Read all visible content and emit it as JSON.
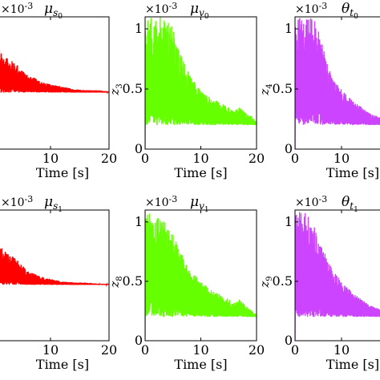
{
  "chart_data": [
    {
      "type": "line",
      "exponent": "×10-3",
      "title": {
        "base": "μ",
        "sub": "s",
        "subsub": "0"
      },
      "ylabel": null,
      "xlabel": "Time [s]",
      "xlim": [
        0,
        20
      ],
      "ylim": [
        0,
        1.1
      ],
      "xticks": [
        "10",
        "20"
      ],
      "xtick_values": [
        10,
        20
      ],
      "yticks": [],
      "color": "#ff0000",
      "series": [
        {
          "x_start": 0,
          "x_end": 20,
          "envelope": [
            [
              0,
              1.0
            ],
            [
              1,
              0.85
            ],
            [
              2,
              0.78
            ],
            [
              3,
              0.75
            ],
            [
              4,
              0.72
            ],
            [
              5,
              0.66
            ],
            [
              6,
              0.62
            ],
            [
              7,
              0.6
            ],
            [
              8,
              0.57
            ],
            [
              9,
              0.55
            ],
            [
              10,
              0.54
            ],
            [
              12,
              0.52
            ],
            [
              14,
              0.5
            ],
            [
              16,
              0.49
            ],
            [
              18,
              0.49
            ],
            [
              20,
              0.48
            ]
          ],
          "baseline": 0.47
        }
      ]
    },
    {
      "type": "line",
      "exponent": "×10-3",
      "title": {
        "base": "μ",
        "sub": "v",
        "subsub": "0"
      },
      "ylabel": {
        "base": "z",
        "sub": "3"
      },
      "xlabel": "Time [s]",
      "xlim": [
        0,
        20
      ],
      "ylim": [
        0,
        1.1
      ],
      "xticks": [
        "0",
        "10",
        "20"
      ],
      "xtick_values": [
        0,
        10,
        20
      ],
      "yticks": [
        "0",
        "0.5",
        "1"
      ],
      "ytick_values": [
        0,
        0.5,
        1
      ],
      "color": "#66ff00",
      "series": [
        {
          "x_start": 0,
          "x_end": 20,
          "envelope": [
            [
              0,
              1.1
            ],
            [
              1,
              1.1
            ],
            [
              2,
              1.1
            ],
            [
              3,
              1.1
            ],
            [
              4,
              1.1
            ],
            [
              5,
              1.0
            ],
            [
              6,
              0.85
            ],
            [
              7,
              0.72
            ],
            [
              8,
              0.62
            ],
            [
              9,
              0.55
            ],
            [
              10,
              0.5
            ],
            [
              12,
              0.42
            ],
            [
              14,
              0.38
            ],
            [
              16,
              0.32
            ],
            [
              17,
              0.35
            ],
            [
              18,
              0.3
            ],
            [
              19,
              0.28
            ],
            [
              20,
              0.22
            ]
          ],
          "baseline": 0.2
        }
      ]
    },
    {
      "type": "line",
      "exponent": "×10-3",
      "title": {
        "base": "θ",
        "sub": "t",
        "subsub": "0"
      },
      "ylabel": {
        "base": "z",
        "sub": "4"
      },
      "xlabel": "Time [s]",
      "xlim": [
        0,
        20
      ],
      "ylim": [
        0,
        1.1
      ],
      "xticks": [
        "0",
        "10",
        "20"
      ],
      "xtick_values": [
        0,
        10,
        20
      ],
      "yticks": [
        "0",
        "0.5",
        "1"
      ],
      "ytick_values": [
        0,
        0.5,
        1
      ],
      "color": "#cc44ff",
      "series": [
        {
          "x_start": 0,
          "x_end": 20,
          "envelope": [
            [
              0,
              1.1
            ],
            [
              1,
              1.1
            ],
            [
              2,
              1.1
            ],
            [
              3,
              1.1
            ],
            [
              4,
              1.1
            ],
            [
              5,
              1.0
            ],
            [
              6,
              0.85
            ],
            [
              7,
              0.7
            ],
            [
              8,
              0.6
            ],
            [
              9,
              0.55
            ],
            [
              10,
              0.5
            ],
            [
              12,
              0.42
            ],
            [
              14,
              0.36
            ],
            [
              16,
              0.3
            ],
            [
              18,
              0.27
            ],
            [
              20,
              0.25
            ]
          ],
          "baseline": 0.2
        }
      ]
    },
    {
      "type": "line",
      "exponent": "×10-3",
      "title": {
        "base": "μ",
        "sub": "s",
        "subsub": "1"
      },
      "ylabel": null,
      "xlabel": "Time [s]",
      "xlim": [
        0,
        20
      ],
      "ylim": [
        0,
        1.1
      ],
      "xticks": [
        "10",
        "20"
      ],
      "xtick_values": [
        10,
        20
      ],
      "yticks": [],
      "color": "#ff0000",
      "series": [
        {
          "x_start": 0,
          "x_end": 20,
          "envelope": [
            [
              0,
              0.92
            ],
            [
              1,
              0.82
            ],
            [
              2,
              0.76
            ],
            [
              3,
              0.72
            ],
            [
              4,
              0.7
            ],
            [
              5,
              0.64
            ],
            [
              6,
              0.6
            ],
            [
              7,
              0.57
            ],
            [
              8,
              0.55
            ],
            [
              9,
              0.53
            ],
            [
              10,
              0.52
            ],
            [
              12,
              0.5
            ],
            [
              14,
              0.49
            ],
            [
              16,
              0.49
            ],
            [
              18,
              0.48
            ],
            [
              20,
              0.48
            ]
          ],
          "baseline": 0.47
        }
      ]
    },
    {
      "type": "line",
      "exponent": "×10-3",
      "title": {
        "base": "μ",
        "sub": "v",
        "subsub": "1"
      },
      "ylabel": {
        "base": "z",
        "sub": "8"
      },
      "xlabel": "Time [s]",
      "xlim": [
        0,
        20
      ],
      "ylim": [
        0,
        1.1
      ],
      "xticks": [
        "0",
        "10",
        "20"
      ],
      "xtick_values": [
        0,
        10,
        20
      ],
      "yticks": [
        "0",
        "0.5",
        "1"
      ],
      "ytick_values": [
        0,
        0.5,
        1
      ],
      "color": "#66ff00",
      "series": [
        {
          "x_start": 0,
          "x_end": 20,
          "envelope": [
            [
              0,
              1.1
            ],
            [
              1,
              1.1
            ],
            [
              2,
              1.1
            ],
            [
              3,
              1.05
            ],
            [
              4,
              0.95
            ],
            [
              5,
              0.9
            ],
            [
              6,
              0.8
            ],
            [
              7,
              0.7
            ],
            [
              8,
              0.6
            ],
            [
              9,
              0.55
            ],
            [
              10,
              0.5
            ],
            [
              12,
              0.42
            ],
            [
              14,
              0.38
            ],
            [
              16,
              0.32
            ],
            [
              17,
              0.35
            ],
            [
              18,
              0.3
            ],
            [
              19,
              0.26
            ],
            [
              20,
              0.22
            ]
          ],
          "baseline": 0.2
        }
      ]
    },
    {
      "type": "line",
      "exponent": "×10-3",
      "title": {
        "base": "θ",
        "sub": "t",
        "subsub": "1"
      },
      "ylabel": {
        "base": "z",
        "sub": "9"
      },
      "xlabel": "Time [s]",
      "xlim": [
        0,
        20
      ],
      "ylim": [
        0,
        1.1
      ],
      "xticks": [
        "0",
        "10",
        "20"
      ],
      "xtick_values": [
        0,
        10,
        20
      ],
      "yticks": [
        "0",
        "0.5",
        "1"
      ],
      "ytick_values": [
        0,
        0.5,
        1
      ],
      "color": "#cc44ff",
      "series": [
        {
          "x_start": 0,
          "x_end": 20,
          "envelope": [
            [
              0,
              1.1
            ],
            [
              1,
              1.1
            ],
            [
              2,
              1.1
            ],
            [
              3,
              1.05
            ],
            [
              4,
              0.98
            ],
            [
              5,
              0.9
            ],
            [
              6,
              0.8
            ],
            [
              7,
              0.68
            ],
            [
              8,
              0.6
            ],
            [
              9,
              0.55
            ],
            [
              10,
              0.5
            ],
            [
              12,
              0.42
            ],
            [
              14,
              0.36
            ],
            [
              16,
              0.3
            ],
            [
              18,
              0.27
            ],
            [
              20,
              0.25
            ]
          ],
          "baseline": 0.2
        }
      ]
    }
  ]
}
